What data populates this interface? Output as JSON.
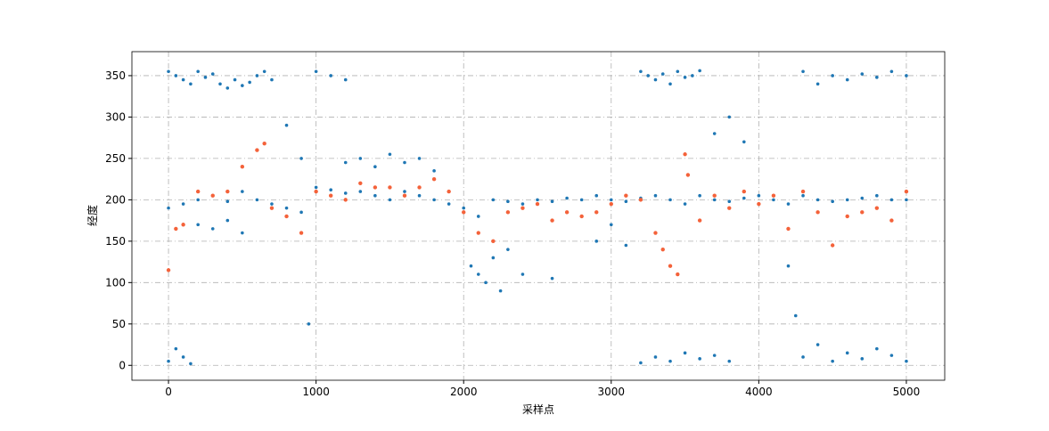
{
  "chart_data": {
    "type": "scatter",
    "xlabel": "采样点",
    "ylabel": "经度",
    "xlim": [
      -248,
      5260
    ],
    "ylim": [
      -18,
      379
    ],
    "xticks": [
      0,
      1000,
      2000,
      3000,
      4000,
      5000
    ],
    "yticks": [
      0,
      50,
      100,
      150,
      200,
      250,
      300,
      350
    ],
    "grid": true,
    "series": [
      {
        "color": "#1f77b4",
        "x": [
          0,
          100,
          200,
          300,
          400,
          500,
          600,
          700,
          800,
          900,
          1000,
          1100,
          1200,
          1300,
          1400,
          1500,
          1600,
          1700,
          1800,
          1900,
          2000,
          2100,
          2200,
          2300,
          2400,
          2500,
          2600,
          2700,
          2800,
          2900,
          3000,
          3100,
          3200,
          3300,
          3400,
          3500,
          3600,
          3700,
          3800,
          3900,
          4000,
          4100,
          4200,
          4300,
          4400,
          4500,
          4600,
          4700,
          4800,
          4900,
          5000,
          0,
          50,
          100,
          150,
          200,
          250,
          300,
          350,
          400,
          450,
          500,
          550,
          600,
          650,
          700,
          1000,
          1100,
          1200,
          3200,
          3250,
          3300,
          3350,
          3400,
          3450,
          3500,
          3550,
          3600,
          4300,
          4400,
          4500,
          4600,
          4700,
          4800,
          4900,
          5000,
          0,
          50,
          100,
          150,
          3200,
          3300,
          3400,
          3500,
          3600,
          3700,
          3800,
          4300,
          4400,
          4500,
          4600,
          4700,
          4800,
          4900,
          5000,
          200,
          300,
          400,
          500,
          1200,
          1300,
          1400,
          1500,
          1600,
          1700,
          1800,
          2050,
          2100,
          2150,
          2200,
          2250,
          2300,
          2400,
          2600,
          800,
          900,
          950,
          2900,
          3000,
          3100,
          4200,
          4250,
          3700,
          3800,
          3900
        ],
        "values": [
          190,
          195,
          200,
          205,
          198,
          210,
          200,
          195,
          190,
          185,
          215,
          212,
          208,
          210,
          205,
          200,
          210,
          205,
          200,
          195,
          190,
          180,
          200,
          198,
          195,
          200,
          198,
          202,
          200,
          205,
          200,
          198,
          202,
          205,
          200,
          195,
          205,
          200,
          198,
          202,
          205,
          200,
          195,
          205,
          200,
          198,
          200,
          202,
          205,
          200,
          200,
          355,
          350,
          345,
          340,
          355,
          348,
          352,
          340,
          335,
          345,
          338,
          342,
          350,
          355,
          345,
          355,
          350,
          345,
          355,
          350,
          345,
          352,
          340,
          355,
          348,
          350,
          356,
          355,
          340,
          350,
          345,
          352,
          348,
          355,
          350,
          5,
          20,
          10,
          2,
          3,
          10,
          5,
          15,
          8,
          12,
          5,
          10,
          25,
          5,
          15,
          8,
          20,
          12,
          5,
          170,
          165,
          175,
          160,
          245,
          250,
          240,
          255,
          245,
          250,
          235,
          120,
          110,
          100,
          130,
          90,
          140,
          110,
          105,
          290,
          250,
          50,
          150,
          170,
          145,
          120,
          60,
          280,
          300,
          270
        ]
      },
      {
        "color": "#f4623a",
        "x": [
          0,
          100,
          200,
          300,
          400,
          500,
          600,
          700,
          800,
          900,
          1000,
          1100,
          1200,
          1300,
          1400,
          1500,
          1600,
          1700,
          1800,
          1900,
          2000,
          2100,
          2200,
          2300,
          2400,
          2500,
          2600,
          2700,
          2800,
          2900,
          3000,
          3100,
          3200,
          3300,
          3400,
          3500,
          3600,
          3700,
          3800,
          3900,
          4000,
          4100,
          4200,
          4300,
          4400,
          4500,
          4600,
          4700,
          4800,
          4900,
          5000,
          50,
          650,
          3350,
          3450,
          3520
        ],
        "values": [
          115,
          170,
          210,
          205,
          210,
          240,
          260,
          190,
          180,
          160,
          210,
          205,
          200,
          220,
          215,
          215,
          205,
          215,
          225,
          210,
          185,
          160,
          150,
          185,
          190,
          195,
          175,
          185,
          180,
          185,
          195,
          205,
          200,
          160,
          120,
          255,
          175,
          205,
          190,
          210,
          195,
          205,
          165,
          210,
          185,
          145,
          180,
          185,
          190,
          175,
          210,
          165,
          268,
          140,
          110,
          230
        ]
      }
    ]
  }
}
